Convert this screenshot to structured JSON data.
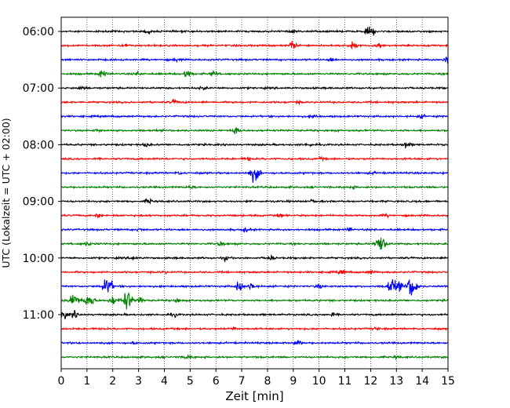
{
  "chart_data": {
    "type": "line",
    "title": "",
    "xlabel": "Zeit  [min]",
    "ylabel": "UTC (Lokalzeit = UTC + 02:00)",
    "xlim": [
      0,
      15
    ],
    "x_ticks": [
      0,
      1,
      2,
      3,
      4,
      5,
      6,
      7,
      8,
      9,
      10,
      11,
      12,
      13,
      14,
      15
    ],
    "y_tick_labels": [
      "06:00",
      "07:00",
      "08:00",
      "09:00",
      "10:00",
      "11:00"
    ],
    "grid": "x-dotted",
    "legend": "none",
    "colors": [
      "#000000",
      "#ff0000",
      "#0000ff",
      "#008000"
    ],
    "traces": [
      {
        "start": "06:00",
        "bursts": [
          [
            3.4,
            0.4
          ],
          [
            11.9,
            0.6
          ],
          [
            12.1,
            0.5
          ],
          [
            9.0,
            0.3
          ]
        ]
      },
      {
        "start": "06:15",
        "bursts": [
          [
            9.0,
            0.9
          ],
          [
            11.3,
            0.7
          ],
          [
            12.3,
            0.5
          ],
          [
            2.5,
            0.3
          ]
        ]
      },
      {
        "start": "06:30",
        "bursts": [
          [
            14.95,
            0.7
          ],
          [
            4.5,
            0.3
          ],
          [
            10.5,
            0.3
          ]
        ]
      },
      {
        "start": "06:45",
        "bursts": [
          [
            1.6,
            0.7
          ],
          [
            4.9,
            1.0
          ],
          [
            5.9,
            0.5
          ],
          [
            3.0,
            0.3
          ]
        ]
      },
      {
        "start": "07:00",
        "bursts": [
          [
            5.5,
            0.3
          ],
          [
            0.8,
            0.3
          ]
        ]
      },
      {
        "start": "07:15",
        "bursts": [
          [
            4.4,
            0.4
          ],
          [
            9.2,
            0.2
          ]
        ]
      },
      {
        "start": "07:30",
        "bursts": [
          [
            9.8,
            0.3
          ],
          [
            14.0,
            0.3
          ]
        ]
      },
      {
        "start": "07:45",
        "bursts": [
          [
            6.8,
            0.9
          ],
          [
            1.4,
            0.2
          ]
        ]
      },
      {
        "start": "08:00",
        "bursts": [
          [
            13.4,
            0.6
          ],
          [
            3.3,
            0.3
          ],
          [
            9.6,
            0.3
          ]
        ]
      },
      {
        "start": "08:15",
        "bursts": [
          [
            7.2,
            0.3
          ],
          [
            10.1,
            0.2
          ]
        ]
      },
      {
        "start": "08:30",
        "bursts": [
          [
            7.5,
            1.4
          ],
          [
            4.6,
            0.2
          ],
          [
            12.1,
            0.2
          ]
        ]
      },
      {
        "start": "08:45",
        "bursts": [
          [
            5.0,
            0.3
          ],
          [
            11.3,
            0.2
          ]
        ]
      },
      {
        "start": "09:00",
        "bursts": [
          [
            3.4,
            0.4
          ],
          [
            9.8,
            0.3
          ]
        ]
      },
      {
        "start": "09:15",
        "bursts": [
          [
            1.4,
            0.4
          ],
          [
            8.5,
            0.3
          ],
          [
            12.6,
            0.2
          ]
        ]
      },
      {
        "start": "09:30",
        "bursts": [
          [
            7.2,
            0.4
          ],
          [
            11.2,
            0.3
          ],
          [
            3.0,
            0.2
          ]
        ]
      },
      {
        "start": "09:45",
        "bursts": [
          [
            12.4,
            1.7
          ],
          [
            6.2,
            0.4
          ],
          [
            1.0,
            0.3
          ]
        ]
      },
      {
        "start": "10:00",
        "bursts": [
          [
            6.4,
            0.5
          ],
          [
            8.1,
            0.4
          ],
          [
            2.8,
            0.3
          ]
        ]
      },
      {
        "start": "10:15",
        "bursts": [
          [
            10.9,
            0.4
          ],
          [
            12.0,
            0.3
          ],
          [
            4.0,
            0.2
          ]
        ]
      },
      {
        "start": "10:30",
        "bursts": [
          [
            1.8,
            1.6
          ],
          [
            6.9,
            1.2
          ],
          [
            7.4,
            0.9
          ],
          [
            12.8,
            1.3
          ],
          [
            13.6,
            2.1
          ],
          [
            13.1,
            0.8
          ],
          [
            10.0,
            0.4
          ]
        ]
      },
      {
        "start": "10:45",
        "bursts": [
          [
            0.5,
            1.4
          ],
          [
            1.1,
            1.3
          ],
          [
            2.55,
            1.8
          ],
          [
            2.0,
            0.8
          ],
          [
            3.1,
            0.7
          ],
          [
            4.5,
            0.3
          ]
        ]
      },
      {
        "start": "11:00",
        "bursts": [
          [
            0.1,
            0.8
          ],
          [
            0.5,
            0.6
          ],
          [
            4.4,
            0.3
          ],
          [
            10.5,
            0.3
          ]
        ]
      },
      {
        "start": "11:15",
        "bursts": [
          [
            6.7,
            0.3
          ],
          [
            12.2,
            0.2
          ]
        ]
      },
      {
        "start": "11:30",
        "bursts": [
          [
            9.2,
            0.7
          ],
          [
            2.8,
            0.2
          ]
        ]
      },
      {
        "start": "11:45",
        "bursts": [
          [
            4.9,
            0.3
          ],
          [
            13.0,
            0.2
          ]
        ]
      }
    ]
  }
}
